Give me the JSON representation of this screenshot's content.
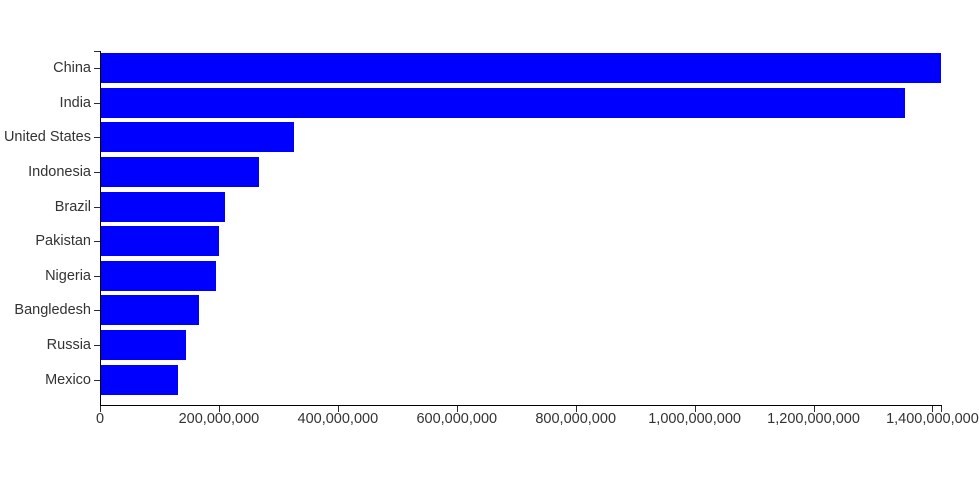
{
  "chart_data": {
    "type": "bar",
    "orientation": "horizontal",
    "title": "",
    "xlabel": "",
    "ylabel": "",
    "categories": [
      "China",
      "India",
      "United States",
      "Indonesia",
      "Brazil",
      "Pakistan",
      "Nigeria",
      "Bangledesh",
      "Russia",
      "Mexico"
    ],
    "values": [
      1415045928,
      1354051854,
      326766748,
      266794980,
      210867954,
      200813818,
      195875237,
      166368149,
      143964709,
      130759074
    ],
    "xlim": [
      0,
      1415045928
    ],
    "x_ticks": [
      0,
      200000000,
      400000000,
      600000000,
      800000000,
      1000000000,
      1200000000,
      1400000000
    ],
    "x_tick_labels": [
      "0",
      "200,000,000",
      "400,000,000",
      "600,000,000",
      "800,000,000",
      "1,000,000,000",
      "1,200,000,000",
      "1,400,000,000"
    ],
    "grid": false,
    "legend": false,
    "bar_color": "#0000ff",
    "axis_color": "#000000",
    "tick_color": "#2b2b2b",
    "label_color": "#333333"
  }
}
